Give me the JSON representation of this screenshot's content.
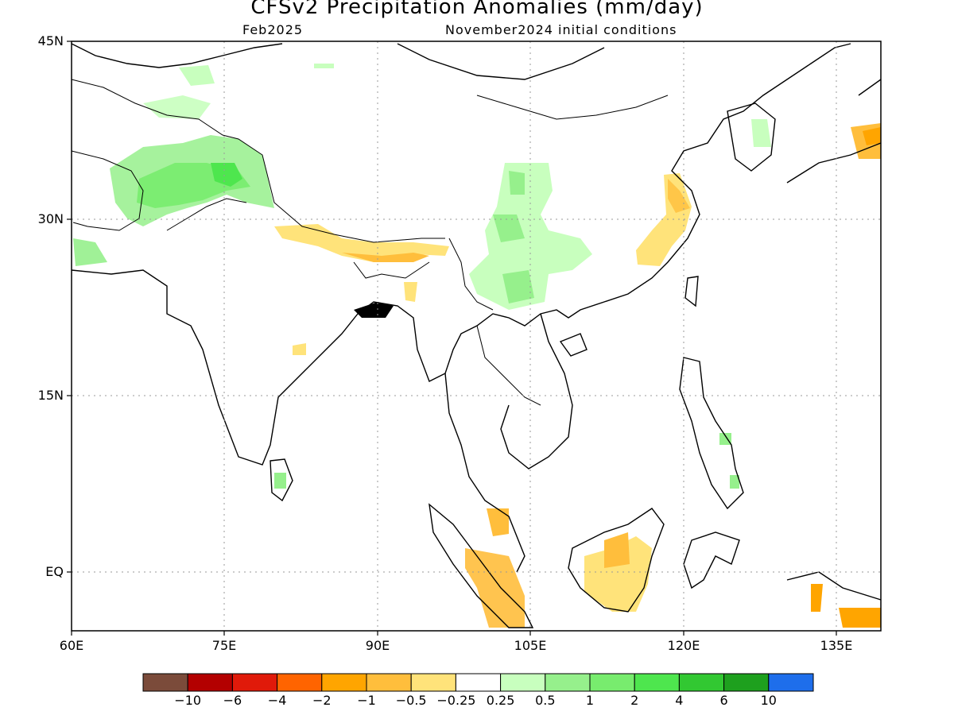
{
  "header": {
    "title": "CFSv2 Precipitation Anomalies (mm/day)",
    "valid_month": "Feb2025",
    "initial_conditions": "November2024 initial conditions"
  },
  "map": {
    "region": "South and East Asia",
    "lat_labels": [
      "45N",
      "30N",
      "15N",
      "EQ"
    ],
    "lon_labels": [
      "60E",
      "75E",
      "90E",
      "105E",
      "120E",
      "135E"
    ],
    "grid": "dotted"
  },
  "colorbar": {
    "colors": [
      "#7b4b3a",
      "#b30000",
      "#e01a0a",
      "#ff6400",
      "#ffa500",
      "#ffbe3c",
      "#ffe37a",
      "#ffffff",
      "#c8ffbe",
      "#96f08c",
      "#78ec6e",
      "#4ee64e",
      "#32c832",
      "#1ea01e",
      "#1e6eeb"
    ],
    "labels": [
      "−10",
      "−6",
      "−4",
      "−2",
      "−1",
      "−0.5",
      "−0.25",
      "0.25",
      "0.5",
      "1",
      "2",
      "4",
      "6",
      "10"
    ]
  }
}
